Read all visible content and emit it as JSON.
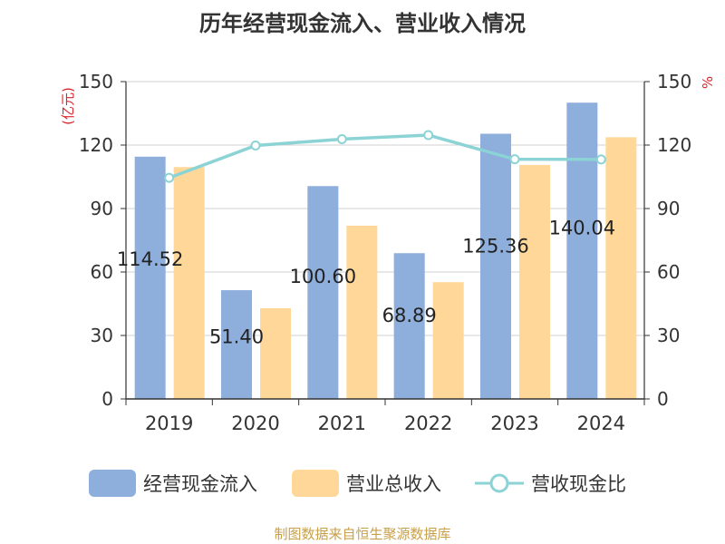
{
  "title": "历年经营现金流入、营业收入情况",
  "credit": "制图数据来自恒生聚源数据库",
  "colors": {
    "inflow": "#8eaedb",
    "revenue": "#ffd899",
    "ratio": "#8cd3d6"
  },
  "chart_data": {
    "type": "bar",
    "categories": [
      "2019",
      "2020",
      "2021",
      "2022",
      "2023",
      "2024"
    ],
    "series": [
      {
        "name": "经营现金流入",
        "values": [
          114.52,
          51.4,
          100.6,
          68.89,
          125.36,
          140.04
        ],
        "data_labels": [
          "114.52",
          "51.40",
          "100.60",
          "68.89",
          "125.36",
          "140.04"
        ]
      },
      {
        "name": "营业总收入",
        "values": [
          109.6,
          42.9,
          81.9,
          55.2,
          110.6,
          123.7
        ]
      },
      {
        "name": "营收现金比",
        "type": "line",
        "axis": "right",
        "values": [
          104.5,
          119.8,
          122.8,
          124.7,
          113.3,
          113.2
        ]
      }
    ],
    "y_left": {
      "unit": "(亿元)",
      "min": 0,
      "max": 150,
      "ticks": [
        0,
        30,
        60,
        90,
        120,
        150
      ]
    },
    "y_right": {
      "unit": "%",
      "min": 0,
      "max": 150,
      "ticks": [
        0,
        30,
        60,
        90,
        120,
        150
      ]
    },
    "grid": true,
    "legend": "bottom"
  }
}
